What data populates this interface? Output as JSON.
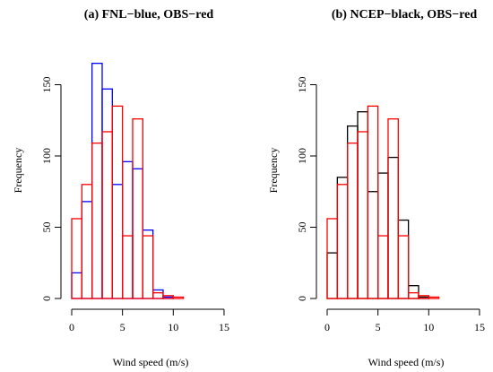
{
  "chart_data": [
    {
      "type": "bar",
      "title": "(a) FNL−blue, OBS−red",
      "xlabel": "Wind speed (m/s)",
      "ylabel": "Frequency",
      "bin_width": 1,
      "x_ticks": [
        "0",
        "5",
        "10",
        "15"
      ],
      "y_ticks": [
        "0",
        "50",
        "100",
        "150"
      ],
      "xlim": [
        0,
        15
      ],
      "ylim": [
        0,
        150
      ],
      "grid": false,
      "series": [
        {
          "name": "FNL",
          "color": "#0000ff",
          "bin_starts": [
            0,
            1,
            2,
            3,
            4,
            5,
            6,
            7,
            8,
            9,
            10
          ],
          "values": [
            18,
            68,
            165,
            147,
            80,
            96,
            91,
            48,
            6,
            1,
            0
          ]
        },
        {
          "name": "OBS",
          "color": "#ff0000",
          "bin_starts": [
            0,
            1,
            2,
            3,
            4,
            5,
            6,
            7,
            8,
            9,
            10
          ],
          "values": [
            56,
            80,
            109,
            117,
            135,
            44,
            126,
            44,
            4,
            2,
            1
          ]
        }
      ]
    },
    {
      "type": "bar",
      "title": "(b) NCEP−black, OBS−red",
      "xlabel": "Wind speed (m/s)",
      "ylabel": "Frequency",
      "bin_width": 1,
      "x_ticks": [
        "0",
        "5",
        "10",
        "15"
      ],
      "y_ticks": [
        "0",
        "50",
        "100",
        "150"
      ],
      "xlim": [
        0,
        15
      ],
      "ylim": [
        0,
        150
      ],
      "grid": false,
      "series": [
        {
          "name": "NCEP",
          "color": "#000000",
          "bin_starts": [
            0,
            1,
            2,
            3,
            4,
            5,
            6,
            7,
            8,
            9,
            10
          ],
          "values": [
            32,
            85,
            121,
            131,
            75,
            88,
            99,
            55,
            9,
            1,
            0
          ]
        },
        {
          "name": "OBS",
          "color": "#ff0000",
          "bin_starts": [
            0,
            1,
            2,
            3,
            4,
            5,
            6,
            7,
            8,
            9,
            10
          ],
          "values": [
            56,
            80,
            109,
            117,
            135,
            44,
            126,
            44,
            4,
            2,
            1
          ]
        }
      ]
    }
  ]
}
